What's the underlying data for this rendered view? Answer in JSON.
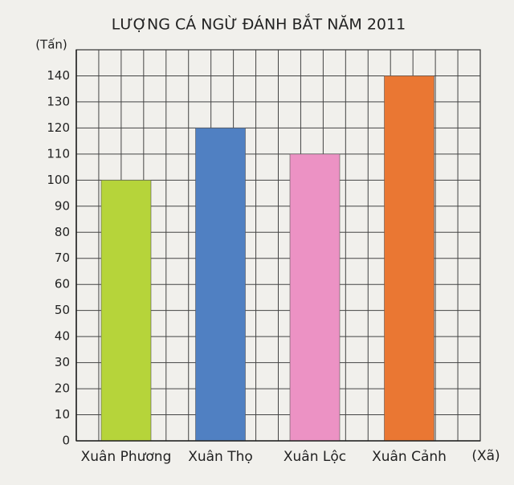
{
  "chart_data": {
    "type": "bar",
    "title": "LƯỢNG CÁ NGỪ ĐÁNH BẮT NĂM 2011",
    "y_label": "(Tấn)",
    "x_label": "(Xã)",
    "categories": [
      "Xuân Phương",
      "Xuân Thọ",
      "Xuân Lộc",
      "Xuân Cảnh"
    ],
    "values": [
      100,
      120,
      110,
      140
    ],
    "colors": [
      "#b6d43a",
      "#5080c2",
      "#ec92c4",
      "#ea7733"
    ],
    "ylim": [
      0,
      150
    ],
    "yticks": [
      0,
      10,
      20,
      30,
      40,
      50,
      60,
      70,
      80,
      90,
      100,
      110,
      120,
      130,
      140
    ],
    "grid": true
  }
}
